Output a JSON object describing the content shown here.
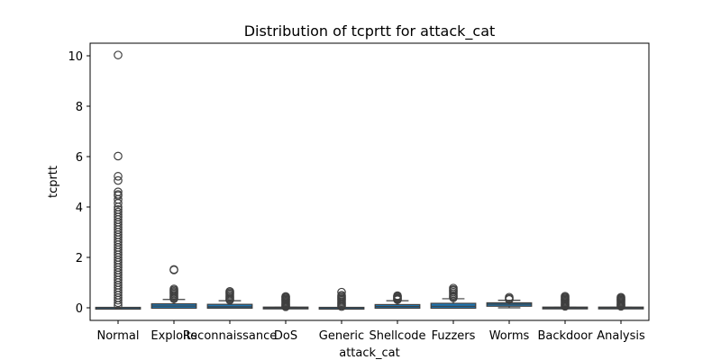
{
  "chart_data": {
    "type": "box",
    "title": "Distribution of tcprtt for attack_cat",
    "xlabel": "attack_cat",
    "ylabel": "tcprtt",
    "ylim": [
      -0.5,
      10.5
    ],
    "yticks": [
      0,
      2,
      4,
      6,
      8,
      10
    ],
    "grid": false,
    "box_color": "#1f77b4",
    "categories": [
      "Normal",
      "Exploits",
      "Reconnaissance",
      "DoS",
      "Generic",
      "Shellcode",
      "Fuzzers",
      "Worms",
      "Backdoor",
      "Analysis"
    ],
    "boxes": [
      {
        "category": "Normal",
        "whislo": 0,
        "q1": 0,
        "median": 0,
        "q3": 0,
        "whishi": 0,
        "fliers": [
          10.03,
          6.02,
          5.22,
          5.05,
          4.6,
          4.5,
          4.45,
          4.3,
          4.15,
          4.0,
          3.9,
          3.8,
          3.7,
          3.6,
          3.5,
          3.4,
          3.3,
          3.2,
          3.1,
          3.0,
          2.9,
          2.8,
          2.7,
          2.6,
          2.5,
          2.4,
          2.3,
          2.2,
          2.1,
          2.0,
          1.9,
          1.8,
          1.7,
          1.6,
          1.5,
          1.4,
          1.3,
          1.2,
          1.1,
          1.0,
          0.9,
          0.8,
          0.7,
          0.6,
          0.5,
          0.4,
          0.3,
          0.2,
          0.1
        ]
      },
      {
        "category": "Exploits",
        "whislo": 0,
        "q1": 0.0,
        "median": 0.07,
        "q3": 0.14,
        "whishi": 0.33,
        "fliers": [
          1.52,
          1.5,
          0.75,
          0.7,
          0.65,
          0.6,
          0.55,
          0.5,
          0.45,
          0.4,
          0.36
        ]
      },
      {
        "category": "Reconnaissance",
        "whislo": 0,
        "q1": 0.0,
        "median": 0.04,
        "q3": 0.12,
        "whishi": 0.28,
        "fliers": [
          0.65,
          0.6,
          0.55,
          0.5,
          0.45,
          0.4,
          0.35,
          0.31
        ]
      },
      {
        "category": "DoS",
        "whislo": 0,
        "q1": 0,
        "median": 0,
        "q3": 0.01,
        "whishi": 0.02,
        "fliers": [
          0.45,
          0.42,
          0.38,
          0.34,
          0.3,
          0.26,
          0.22,
          0.18,
          0.14,
          0.1,
          0.06,
          0.04
        ]
      },
      {
        "category": "Generic",
        "whislo": 0,
        "q1": 0,
        "median": 0,
        "q3": 0,
        "whishi": 0,
        "fliers": [
          0.62,
          0.5,
          0.45,
          0.4,
          0.35,
          0.3,
          0.25,
          0.2,
          0.15,
          0.1,
          0.05
        ]
      },
      {
        "category": "Shellcode",
        "whislo": 0,
        "q1": 0.0,
        "median": 0.05,
        "q3": 0.11,
        "whishi": 0.28,
        "fliers": [
          0.48,
          0.45,
          0.42,
          0.38,
          0.35,
          0.32
        ]
      },
      {
        "category": "Fuzzers",
        "whislo": 0,
        "q1": 0.0,
        "median": 0.06,
        "q3": 0.16,
        "whishi": 0.36,
        "fliers": [
          0.78,
          0.72,
          0.68,
          0.62,
          0.56,
          0.5,
          0.45,
          0.4
        ]
      },
      {
        "category": "Worms",
        "whislo": 0.0,
        "q1": 0.08,
        "median": 0.14,
        "q3": 0.18,
        "whishi": 0.3,
        "fliers": [
          0.42,
          0.37,
          0.33
        ]
      },
      {
        "category": "Backdoor",
        "whislo": 0,
        "q1": 0,
        "median": 0,
        "q3": 0.01,
        "whishi": 0.02,
        "fliers": [
          0.46,
          0.42,
          0.38,
          0.34,
          0.3,
          0.26,
          0.22,
          0.18,
          0.14,
          0.1,
          0.06
        ]
      },
      {
        "category": "Analysis",
        "whislo": 0,
        "q1": 0,
        "median": 0,
        "q3": 0.01,
        "whishi": 0.02,
        "fliers": [
          0.42,
          0.38,
          0.34,
          0.3,
          0.26,
          0.22,
          0.18,
          0.14,
          0.1,
          0.06
        ]
      }
    ]
  }
}
